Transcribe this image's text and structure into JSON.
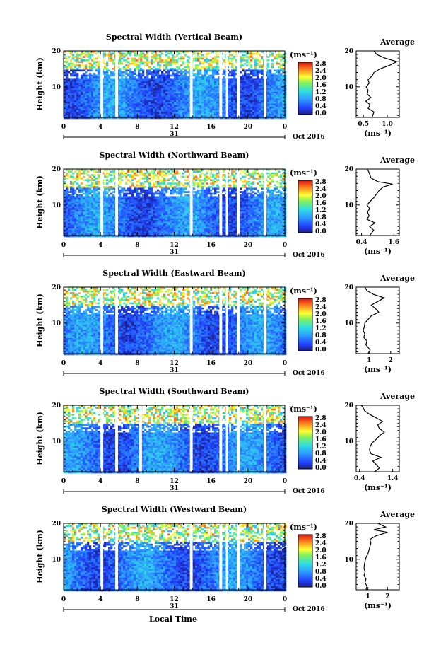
{
  "figure": {
    "xlabel": "Local Time",
    "date_label": "Oct 2016",
    "day_label": "31"
  },
  "chart_data": [
    {
      "type": "heatmap",
      "title": "Spectral Width (Vertical Beam)",
      "ylabel": "Height (km)",
      "xlabel": "Local Time",
      "x_range": [
        0,
        24
      ],
      "y_range": [
        1.5,
        20
      ],
      "x_ticks": [
        "0",
        "4",
        "8",
        "12",
        "16",
        "20",
        "0"
      ],
      "y_ticks": [
        10,
        20
      ],
      "gaps_hours": [
        [
          4.0,
          4.3
        ],
        [
          5.6,
          5.9
        ],
        [
          13.7,
          14.0
        ],
        [
          16.9,
          17.2
        ],
        [
          17.6,
          17.8
        ],
        [
          18.8,
          19.1
        ],
        [
          21.7,
          22.0
        ]
      ],
      "colorbar": {
        "unit": "(ms⁻¹)",
        "ticks": [
          "2.8",
          "2.4",
          "2.0",
          "1.6",
          "1.2",
          "0.8",
          "0.4",
          "0.0"
        ],
        "range": [
          0,
          2.8
        ]
      },
      "average_profile": {
        "title": "Average",
        "xlabel": "(ms⁻¹)",
        "x_ticks": [
          "0.5",
          "1.0"
        ],
        "x_range": [
          0.35,
          1.25
        ],
        "heights_km": [
          1.5,
          3,
          4,
          5,
          6,
          7,
          8,
          9,
          10,
          11,
          12,
          13,
          14,
          15,
          16,
          17,
          18,
          19,
          20
        ],
        "values": [
          0.68,
          0.72,
          0.6,
          0.64,
          0.55,
          0.66,
          0.58,
          0.6,
          0.56,
          0.62,
          0.6,
          0.68,
          0.72,
          0.85,
          1.05,
          1.2,
          0.95,
          0.78,
          0.72
        ]
      }
    },
    {
      "type": "heatmap",
      "title": "Spectral Width (Northward Beam)",
      "ylabel": "Height (km)",
      "xlabel": "Local Time",
      "x_range": [
        0,
        24
      ],
      "y_range": [
        1.5,
        20
      ],
      "x_ticks": [
        "0",
        "4",
        "8",
        "12",
        "16",
        "20",
        "0"
      ],
      "y_ticks": [
        10,
        20
      ],
      "gaps_hours": [
        [
          4.0,
          4.3
        ],
        [
          5.6,
          5.9
        ],
        [
          13.7,
          14.0
        ],
        [
          16.9,
          17.2
        ],
        [
          17.6,
          17.8
        ],
        [
          18.8,
          19.1
        ],
        [
          21.7,
          22.0
        ]
      ],
      "colorbar": {
        "unit": "(ms⁻¹)",
        "ticks": [
          "2.8",
          "2.4",
          "2.0",
          "1.6",
          "1.2",
          "0.8",
          "0.4",
          "0.0"
        ],
        "range": [
          0,
          2.8
        ]
      },
      "average_profile": {
        "title": "Average",
        "xlabel": "(ms⁻¹)",
        "x_ticks": [
          "0.4",
          "1.6"
        ],
        "x_range": [
          0.2,
          1.8
        ],
        "heights_km": [
          1.5,
          3,
          4,
          5,
          6,
          7,
          8,
          9,
          10,
          11,
          12,
          13,
          14,
          15,
          15.8,
          16.5,
          17.5,
          18.5,
          19.5,
          20
        ],
        "values": [
          0.7,
          0.85,
          0.7,
          0.9,
          0.6,
          0.68,
          0.62,
          0.7,
          0.6,
          0.72,
          0.85,
          0.95,
          1.05,
          1.2,
          1.55,
          1.0,
          0.75,
          0.7,
          0.65,
          0.6
        ]
      }
    },
    {
      "type": "heatmap",
      "title": "Spectral Width (Eastward Beam)",
      "ylabel": "Height (km)",
      "xlabel": "Local Time",
      "x_range": [
        0,
        24
      ],
      "y_range": [
        1.5,
        20
      ],
      "x_ticks": [
        "0",
        "4",
        "8",
        "12",
        "16",
        "20",
        "0"
      ],
      "y_ticks": [
        10,
        20
      ],
      "gaps_hours": [
        [
          4.0,
          4.3
        ],
        [
          5.6,
          5.9
        ],
        [
          13.7,
          14.0
        ],
        [
          16.9,
          17.2
        ],
        [
          17.6,
          17.8
        ],
        [
          18.8,
          19.1
        ],
        [
          21.7,
          22.0
        ]
      ],
      "colorbar": {
        "unit": "(ms⁻¹)",
        "ticks": [
          "2.8",
          "2.4",
          "2.0",
          "1.6",
          "1.2",
          "0.8",
          "0.4",
          "0.0"
        ],
        "range": [
          0,
          2.8
        ]
      },
      "average_profile": {
        "title": "Average",
        "xlabel": "(ms⁻¹)",
        "x_ticks": [
          "1",
          "2"
        ],
        "x_range": [
          0.4,
          2.4
        ],
        "heights_km": [
          1.5,
          2.5,
          4,
          5,
          6,
          7,
          8,
          9,
          10,
          11,
          12,
          13,
          14,
          15,
          16,
          17,
          18,
          19,
          20
        ],
        "values": [
          0.95,
          1.05,
          0.85,
          0.9,
          0.75,
          0.8,
          0.72,
          0.78,
          0.8,
          0.95,
          1.1,
          1.45,
          1.3,
          1.1,
          1.4,
          1.7,
          1.2,
          0.9,
          0.8
        ]
      }
    },
    {
      "type": "heatmap",
      "title": "Spectral Width (Southward Beam)",
      "ylabel": "Height (km)",
      "xlabel": "Local Time",
      "x_range": [
        0,
        24
      ],
      "y_range": [
        1.5,
        20
      ],
      "x_ticks": [
        "0",
        "4",
        "8",
        "12",
        "16",
        "20",
        "0"
      ],
      "y_ticks": [
        10,
        20
      ],
      "gaps_hours": [
        [
          4.0,
          4.3
        ],
        [
          5.6,
          5.9
        ],
        [
          8.2,
          8.5
        ],
        [
          13.7,
          14.0
        ],
        [
          16.9,
          17.2
        ],
        [
          17.6,
          17.8
        ],
        [
          18.8,
          19.1
        ],
        [
          21.7,
          22.0
        ]
      ],
      "colorbar": {
        "unit": "(ms⁻¹)",
        "ticks": [
          "2.8",
          "2.4",
          "2.0",
          "1.6",
          "1.2",
          "0.8",
          "0.4",
          "0.0"
        ],
        "range": [
          0,
          2.8
        ]
      },
      "average_profile": {
        "title": "Average",
        "xlabel": "(ms⁻¹)",
        "x_ticks": [
          "0.4",
          "1.4"
        ],
        "x_range": [
          0.3,
          1.6
        ],
        "heights_km": [
          1.5,
          2.5,
          3.5,
          4.5,
          5.5,
          6.5,
          7.5,
          8.5,
          9.5,
          10.5,
          11.5,
          12.5,
          13.5,
          14.5,
          15.5,
          16.5,
          17.5,
          18.5,
          19.5,
          20
        ],
        "values": [
          0.85,
          1.0,
          0.9,
          0.8,
          1.05,
          0.75,
          0.7,
          0.72,
          0.78,
          0.9,
          1.0,
          1.15,
          1.0,
          0.95,
          1.1,
          0.9,
          0.7,
          0.55,
          0.5,
          0.45
        ]
      }
    },
    {
      "type": "heatmap",
      "title": "Spectral Width (Westward Beam)",
      "ylabel": "Height (km)",
      "xlabel": "Local Time",
      "x_range": [
        0,
        24
      ],
      "y_range": [
        1.5,
        20
      ],
      "x_ticks": [
        "0",
        "4",
        "8",
        "12",
        "16",
        "20",
        "0"
      ],
      "y_ticks": [
        10,
        20
      ],
      "gaps_hours": [
        [
          4.0,
          4.3
        ],
        [
          5.6,
          5.9
        ],
        [
          13.7,
          14.0
        ],
        [
          16.9,
          17.2
        ],
        [
          17.6,
          17.8
        ],
        [
          18.8,
          19.1
        ],
        [
          21.7,
          22.0
        ]
      ],
      "colorbar": {
        "unit": "(ms⁻¹)",
        "ticks": [
          "2.8",
          "2.4",
          "2.0",
          "1.6",
          "1.2",
          "0.8",
          "0.4",
          "0.0"
        ],
        "range": [
          0,
          2.8
        ]
      },
      "average_profile": {
        "title": "Average",
        "xlabel": "(ms⁻¹)",
        "x_ticks": [
          "1",
          "2"
        ],
        "x_range": [
          0.4,
          2.6
        ],
        "heights_km": [
          1.5,
          2.5,
          3.5,
          4.5,
          5.5,
          6.5,
          7.5,
          8.5,
          9.5,
          10.5,
          11.5,
          12.5,
          13.5,
          14.5,
          15.5,
          16.5,
          17.5,
          18.2,
          19,
          20
        ],
        "values": [
          0.9,
          0.95,
          0.85,
          0.9,
          0.8,
          0.85,
          0.8,
          0.82,
          0.85,
          0.9,
          1.0,
          1.05,
          1.1,
          1.15,
          1.1,
          1.4,
          2.0,
          1.3,
          1.9,
          1.5
        ]
      }
    }
  ]
}
